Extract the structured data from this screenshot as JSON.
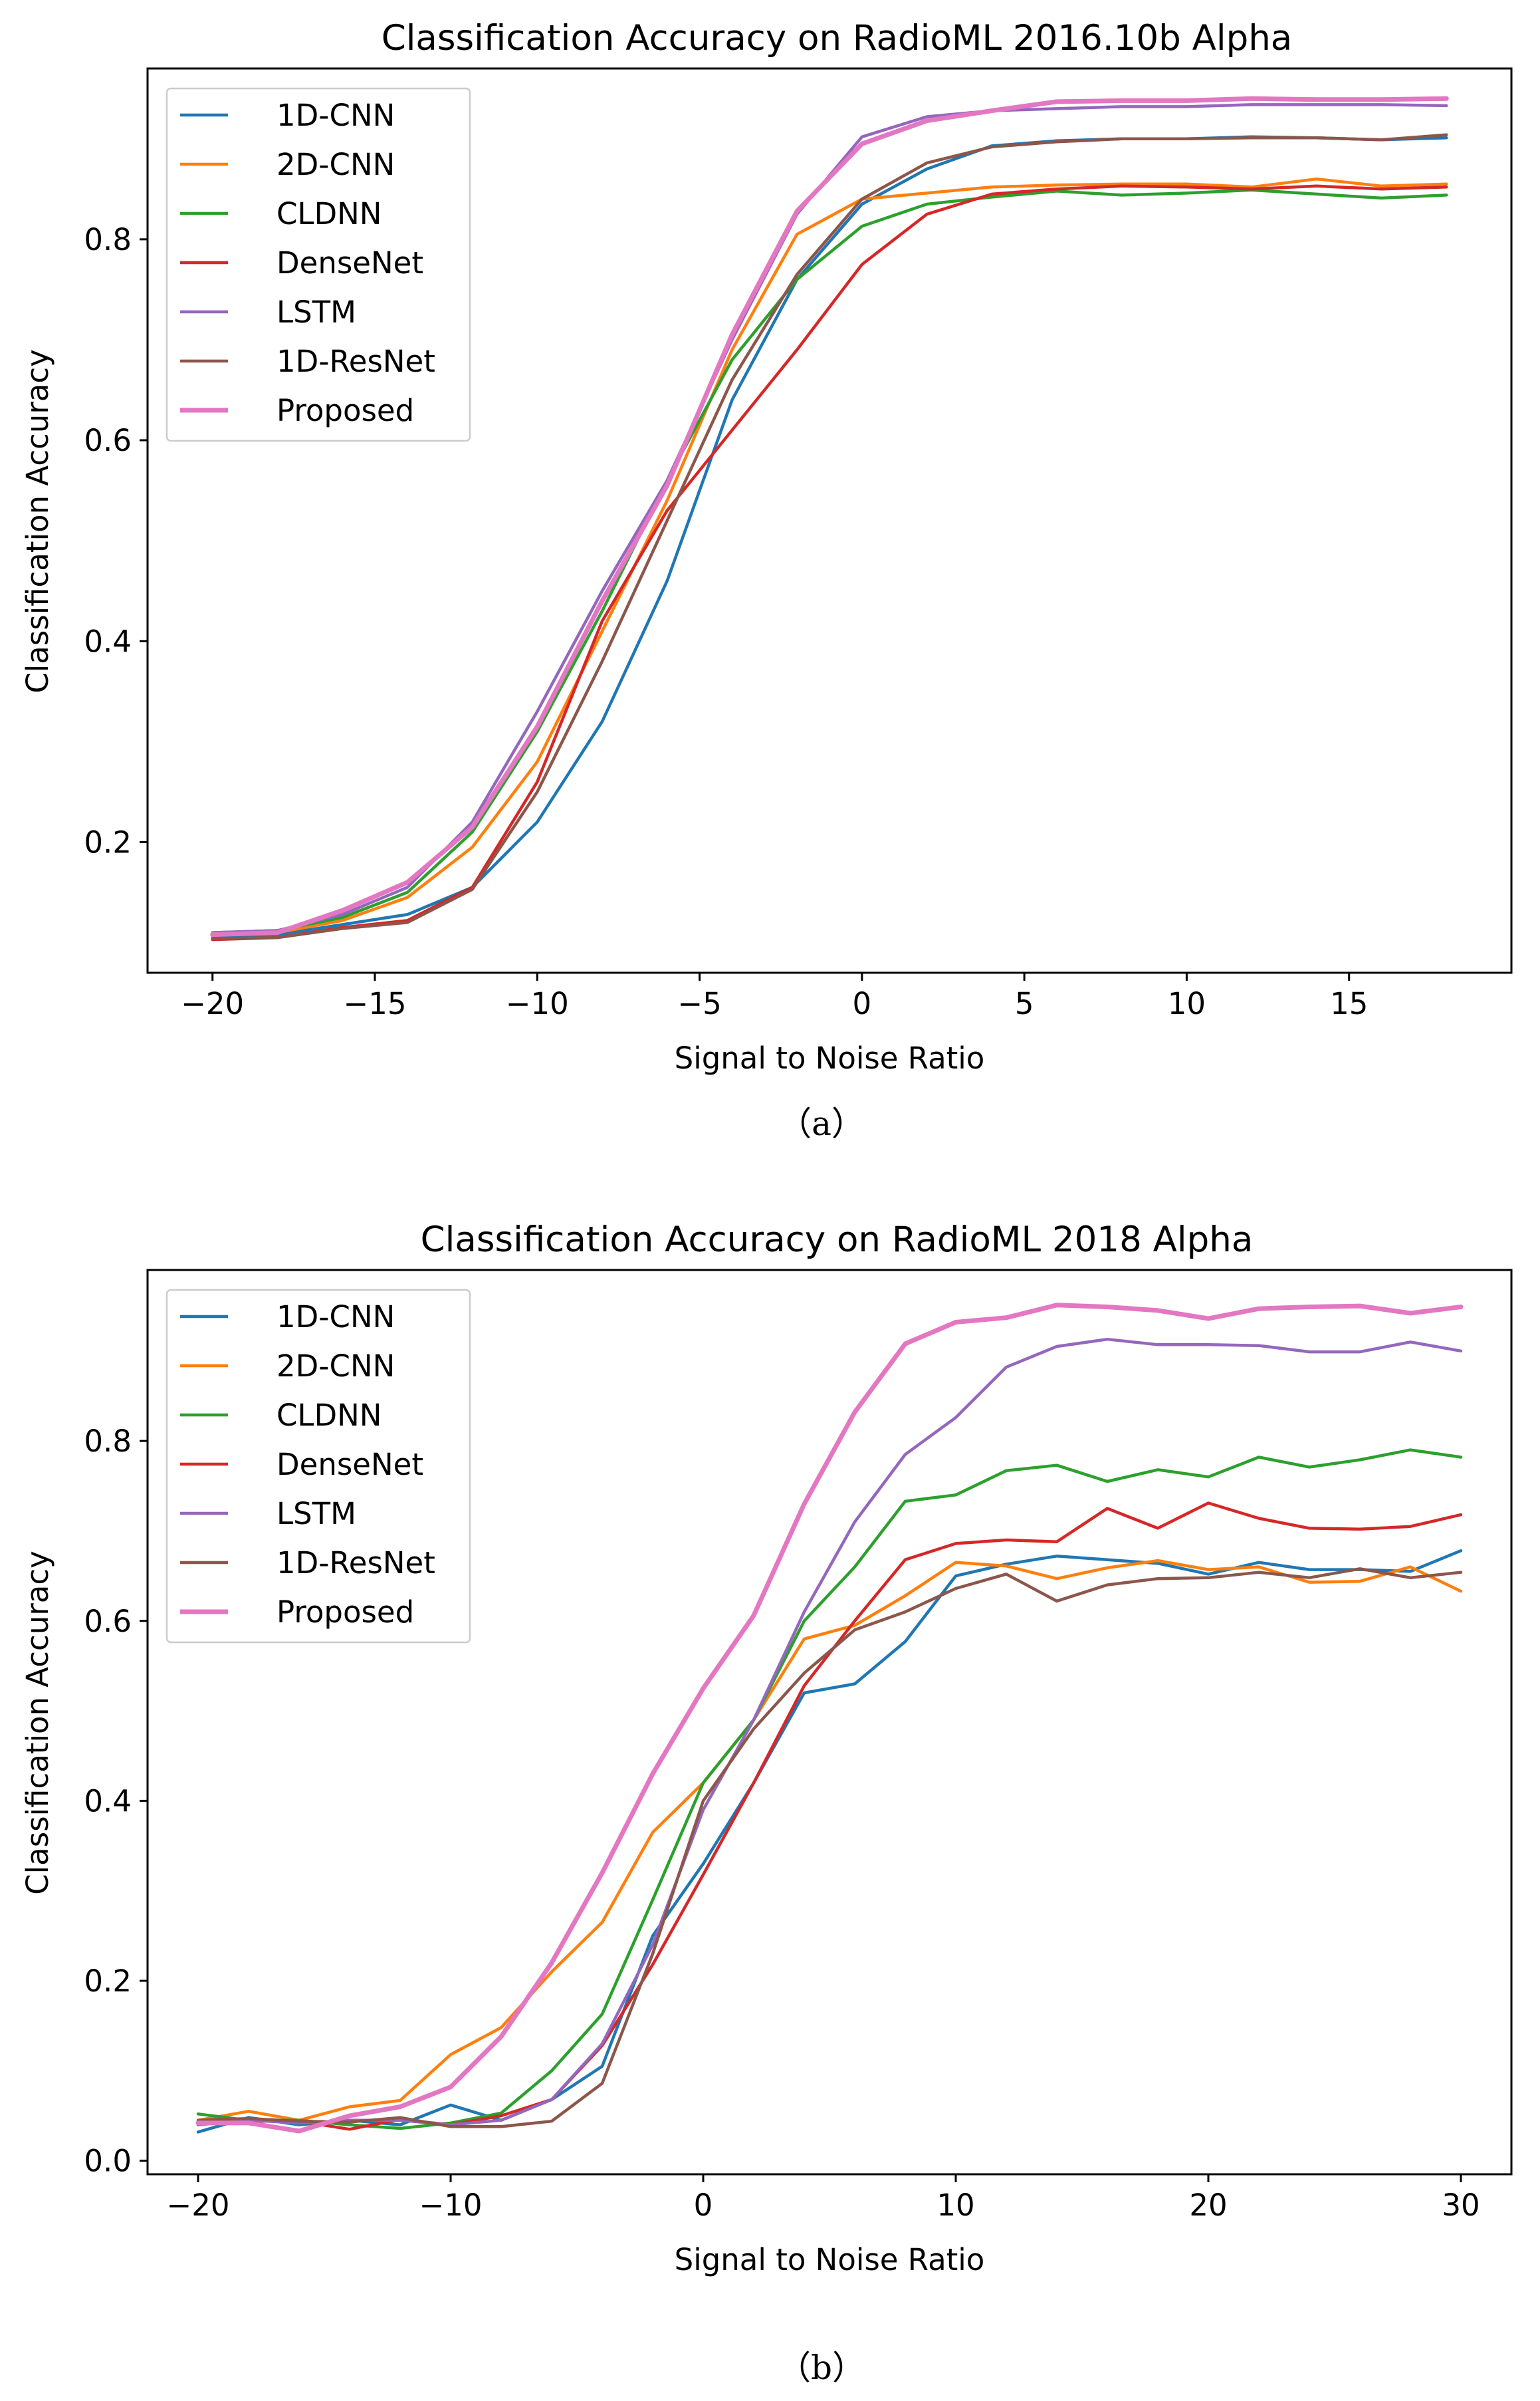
{
  "chart_data": [
    {
      "type": "line",
      "title": "Classification Accuracy on RadioML 2016.10b Alpha",
      "xlabel": "Signal to Noise Ratio",
      "ylabel": "Classification Accuracy",
      "caption": "（a）",
      "xlim": [
        -22,
        20
      ],
      "ylim": [
        0.07,
        0.97
      ],
      "xticks": [
        -20,
        -15,
        -10,
        -5,
        0,
        5,
        10,
        15
      ],
      "xtick_labels": [
        "−20",
        "−15",
        "−10",
        "−5",
        "0",
        "5",
        "10",
        "15"
      ],
      "yticks": [
        0.2,
        0.4,
        0.6,
        0.8
      ],
      "ytick_labels": [
        "0.2",
        "0.4",
        "0.6",
        "0.8"
      ],
      "legend_position": "upper-left",
      "x": [
        -20,
        -18,
        -16,
        -14,
        -12,
        -10,
        -8,
        -6,
        -4,
        -2,
        0,
        2,
        4,
        6,
        8,
        10,
        12,
        14,
        16,
        18
      ],
      "series": [
        {
          "name": "1D-CNN",
          "color": "#1f77b4",
          "values": [
            0.105,
            0.108,
            0.118,
            0.128,
            0.155,
            0.22,
            0.32,
            0.46,
            0.64,
            0.76,
            0.835,
            0.87,
            0.893,
            0.898,
            0.9,
            0.9,
            0.902,
            0.901,
            0.899,
            0.901
          ]
        },
        {
          "name": "2D-CNN",
          "color": "#ff7f0e",
          "values": [
            0.108,
            0.11,
            0.122,
            0.145,
            0.195,
            0.28,
            0.41,
            0.54,
            0.69,
            0.805,
            0.84,
            0.846,
            0.852,
            0.854,
            0.855,
            0.855,
            0.852,
            0.86,
            0.853,
            0.855
          ]
        },
        {
          "name": "CLDNN",
          "color": "#2ca02c",
          "values": [
            0.11,
            0.112,
            0.125,
            0.15,
            0.21,
            0.31,
            0.43,
            0.56,
            0.68,
            0.76,
            0.813,
            0.835,
            0.842,
            0.848,
            0.844,
            0.846,
            0.849,
            0.845,
            0.841,
            0.844
          ]
        },
        {
          "name": "DenseNet",
          "color": "#d62728",
          "values": [
            0.103,
            0.105,
            0.115,
            0.122,
            0.155,
            0.26,
            0.42,
            0.53,
            0.61,
            0.69,
            0.775,
            0.825,
            0.845,
            0.85,
            0.853,
            0.852,
            0.85,
            0.853,
            0.85,
            0.852
          ]
        },
        {
          "name": "LSTM",
          "color": "#9467bd",
          "values": [
            0.11,
            0.112,
            0.128,
            0.155,
            0.22,
            0.33,
            0.45,
            0.56,
            0.7,
            0.825,
            0.902,
            0.922,
            0.928,
            0.93,
            0.932,
            0.932,
            0.934,
            0.934,
            0.934,
            0.933
          ]
        },
        {
          "name": "1D-ResNet",
          "color": "#8c564b",
          "values": [
            0.104,
            0.105,
            0.114,
            0.12,
            0.153,
            0.25,
            0.38,
            0.52,
            0.66,
            0.765,
            0.84,
            0.876,
            0.892,
            0.897,
            0.9,
            0.9,
            0.901,
            0.901,
            0.899,
            0.904
          ]
        },
        {
          "name": "Proposed",
          "color": "#e377c2",
          "values": [
            0.108,
            0.11,
            0.132,
            0.16,
            0.215,
            0.315,
            0.44,
            0.555,
            0.705,
            0.828,
            0.895,
            0.918,
            0.928,
            0.937,
            0.938,
            0.938,
            0.94,
            0.939,
            0.939,
            0.94
          ]
        }
      ]
    },
    {
      "type": "line",
      "title": "Classification Accuracy on RadioML 2018 Alpha",
      "xlabel": "Signal to Noise Ratio",
      "ylabel": "Classification Accuracy",
      "caption": "（b）",
      "xlim": [
        -22,
        32
      ],
      "ylim": [
        -0.015,
        0.99
      ],
      "xticks": [
        -20,
        -10,
        0,
        10,
        20,
        30
      ],
      "xtick_labels": [
        "−20",
        "−10",
        "0",
        "10",
        "20",
        "30"
      ],
      "yticks": [
        0.0,
        0.2,
        0.4,
        0.6,
        0.8
      ],
      "ytick_labels": [
        "0.0",
        "0.2",
        "0.4",
        "0.6",
        "0.8"
      ],
      "legend_position": "upper-left",
      "x": [
        -20,
        -18,
        -16,
        -14,
        -12,
        -10,
        -8,
        -6,
        -4,
        -2,
        0,
        2,
        4,
        6,
        8,
        10,
        12,
        14,
        16,
        18,
        20,
        22,
        24,
        26,
        28,
        30
      ],
      "series": [
        {
          "name": "1D-CNN",
          "color": "#1f77b4",
          "values": [
            0.032,
            0.048,
            0.04,
            0.045,
            0.04,
            0.062,
            0.045,
            0.068,
            0.105,
            0.25,
            0.33,
            0.42,
            0.52,
            0.53,
            0.577,
            0.65,
            0.663,
            0.672,
            0.668,
            0.664,
            0.652,
            0.665,
            0.657,
            0.657,
            0.655,
            0.678
          ]
        },
        {
          "name": "2D-CNN",
          "color": "#ff7f0e",
          "values": [
            0.045,
            0.055,
            0.045,
            0.06,
            0.067,
            0.118,
            0.148,
            0.21,
            0.265,
            0.365,
            0.42,
            0.49,
            0.58,
            0.595,
            0.628,
            0.665,
            0.661,
            0.647,
            0.659,
            0.667,
            0.657,
            0.66,
            0.643,
            0.644,
            0.66,
            0.633
          ]
        },
        {
          "name": "CLDNN",
          "color": "#2ca02c",
          "values": [
            0.052,
            0.045,
            0.045,
            0.04,
            0.036,
            0.042,
            0.053,
            0.1,
            0.163,
            0.29,
            0.42,
            0.49,
            0.6,
            0.66,
            0.733,
            0.74,
            0.767,
            0.773,
            0.755,
            0.768,
            0.76,
            0.782,
            0.771,
            0.779,
            0.79,
            0.782
          ]
        },
        {
          "name": "DenseNet",
          "color": "#d62728",
          "values": [
            0.042,
            0.044,
            0.044,
            0.035,
            0.046,
            0.04,
            0.05,
            0.068,
            0.128,
            0.218,
            0.318,
            0.42,
            0.528,
            0.6,
            0.668,
            0.686,
            0.69,
            0.688,
            0.725,
            0.703,
            0.731,
            0.714,
            0.703,
            0.702,
            0.705,
            0.718
          ]
        },
        {
          "name": "LSTM",
          "color": "#9467bd",
          "values": [
            0.04,
            0.045,
            0.042,
            0.045,
            0.045,
            0.04,
            0.045,
            0.068,
            0.13,
            0.24,
            0.39,
            0.49,
            0.61,
            0.71,
            0.785,
            0.826,
            0.882,
            0.905,
            0.913,
            0.907,
            0.907,
            0.906,
            0.899,
            0.899,
            0.91,
            0.9
          ]
        },
        {
          "name": "1D-ResNet",
          "color": "#8c564b",
          "values": [
            0.045,
            0.047,
            0.044,
            0.043,
            0.048,
            0.038,
            0.038,
            0.044,
            0.086,
            0.23,
            0.4,
            0.48,
            0.542,
            0.59,
            0.61,
            0.636,
            0.652,
            0.622,
            0.64,
            0.647,
            0.648,
            0.654,
            0.648,
            0.658,
            0.648,
            0.654
          ]
        },
        {
          "name": "Proposed",
          "color": "#e377c2",
          "values": [
            0.042,
            0.042,
            0.033,
            0.05,
            0.06,
            0.082,
            0.138,
            0.22,
            0.32,
            0.43,
            0.525,
            0.606,
            0.73,
            0.832,
            0.908,
            0.932,
            0.937,
            0.951,
            0.949,
            0.945,
            0.936,
            0.947,
            0.949,
            0.95,
            0.942,
            0.949
          ]
        }
      ]
    }
  ]
}
